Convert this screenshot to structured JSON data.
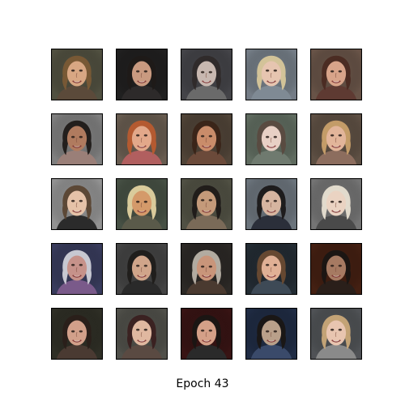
{
  "caption": "Epoch 43",
  "grid": {
    "rows": 5,
    "cols": 5,
    "tiles": [
      {
        "bg": "#6b6a55",
        "hair": "#7a5a35",
        "skin": "#d8a783",
        "shirt": "#5b4a3a"
      },
      {
        "bg": "#2b2a2a",
        "hair": "#1f1a18",
        "skin": "#c99a80",
        "shirt": "#2d2a2a"
      },
      {
        "bg": "#5a5a60",
        "hair": "#2f2a2a",
        "skin": "#c8b8b0",
        "shirt": "#6a6a6a"
      },
      {
        "bg": "#9aa6b2",
        "hair": "#d8c79a",
        "skin": "#e6c5b0",
        "shirt": "#7f8a94"
      },
      {
        "bg": "#8a6f5f",
        "hair": "#4a2a22",
        "skin": "#d8a48a",
        "shirt": "#5e3a32"
      },
      {
        "bg": "#a9a9a9",
        "hair": "#1f1a18",
        "skin": "#b07b5f",
        "shirt": "#9a7f78"
      },
      {
        "bg": "#8a7a6a",
        "hair": "#b85b2f",
        "skin": "#e2a88a",
        "shirt": "#b15f5f"
      },
      {
        "bg": "#6a5a4a",
        "hair": "#3a2418",
        "skin": "#c98c6a",
        "shirt": "#6b4a3a"
      },
      {
        "bg": "#7f8f7f",
        "hair": "#5a4a40",
        "skin": "#e8d0c5",
        "shirt": "#6f7a6f"
      },
      {
        "bg": "#7d6a5a",
        "hair": "#c9a06a",
        "skin": "#e2b59a",
        "shirt": "#8c6d5e"
      },
      {
        "bg": "#c2c2c2",
        "hair": "#5a4432",
        "skin": "#e5c2a8",
        "shirt": "#2b2b2b"
      },
      {
        "bg": "#5d6a5a",
        "hair": "#e2d2a0",
        "skin": "#d49a6a",
        "shirt": "#5a5a4a"
      },
      {
        "bg": "#6b6b5a",
        "hair": "#1f1a18",
        "skin": "#c49a7a",
        "shirt": "#7a6a58"
      },
      {
        "bg": "#8f9aa5",
        "hair": "#1a1818",
        "skin": "#d6b5a0",
        "shirt": "#2b2f3a"
      },
      {
        "bg": "#9a9a9a",
        "hair": "#e8e0d2",
        "skin": "#ead3c2",
        "shirt": "#4a4a4a"
      },
      {
        "bg": "#4b4f7a",
        "hair": "#d0d0d8",
        "skin": "#c6928a",
        "shirt": "#7a5a8a"
      },
      {
        "bg": "#5a5a5a",
        "hair": "#1f1c1a",
        "skin": "#d0a58a",
        "shirt": "#2a2a2a"
      },
      {
        "bg": "#3a3632",
        "hair": "#b9b2a8",
        "skin": "#c9957a",
        "shirt": "#4a3a30"
      },
      {
        "bg": "#2f3a44",
        "hair": "#6a4a32",
        "skin": "#e0b095",
        "shirt": "#3e4a56"
      },
      {
        "bg": "#5a2a18",
        "hair": "#1a1614",
        "skin": "#a67a62",
        "shirt": "#2a1f1a"
      },
      {
        "bg": "#3e3e32",
        "hair": "#2a1f1a",
        "skin": "#d2a08a",
        "shirt": "#4a3a32"
      },
      {
        "bg": "#6a6a62",
        "hair": "#3a2020",
        "skin": "#e0b8a0",
        "shirt": "#5a4a42"
      },
      {
        "bg": "#4a1a1a",
        "hair": "#1a1614",
        "skin": "#d4a088",
        "shirt": "#2a2a2a"
      },
      {
        "bg": "#2a3a5a",
        "hair": "#1a1614",
        "skin": "#b9a08a",
        "shirt": "#3a4a6a"
      },
      {
        "bg": "#6a6e72",
        "hair": "#c9a878",
        "skin": "#e8c5b0",
        "shirt": "#8a8a8a"
      }
    ]
  }
}
